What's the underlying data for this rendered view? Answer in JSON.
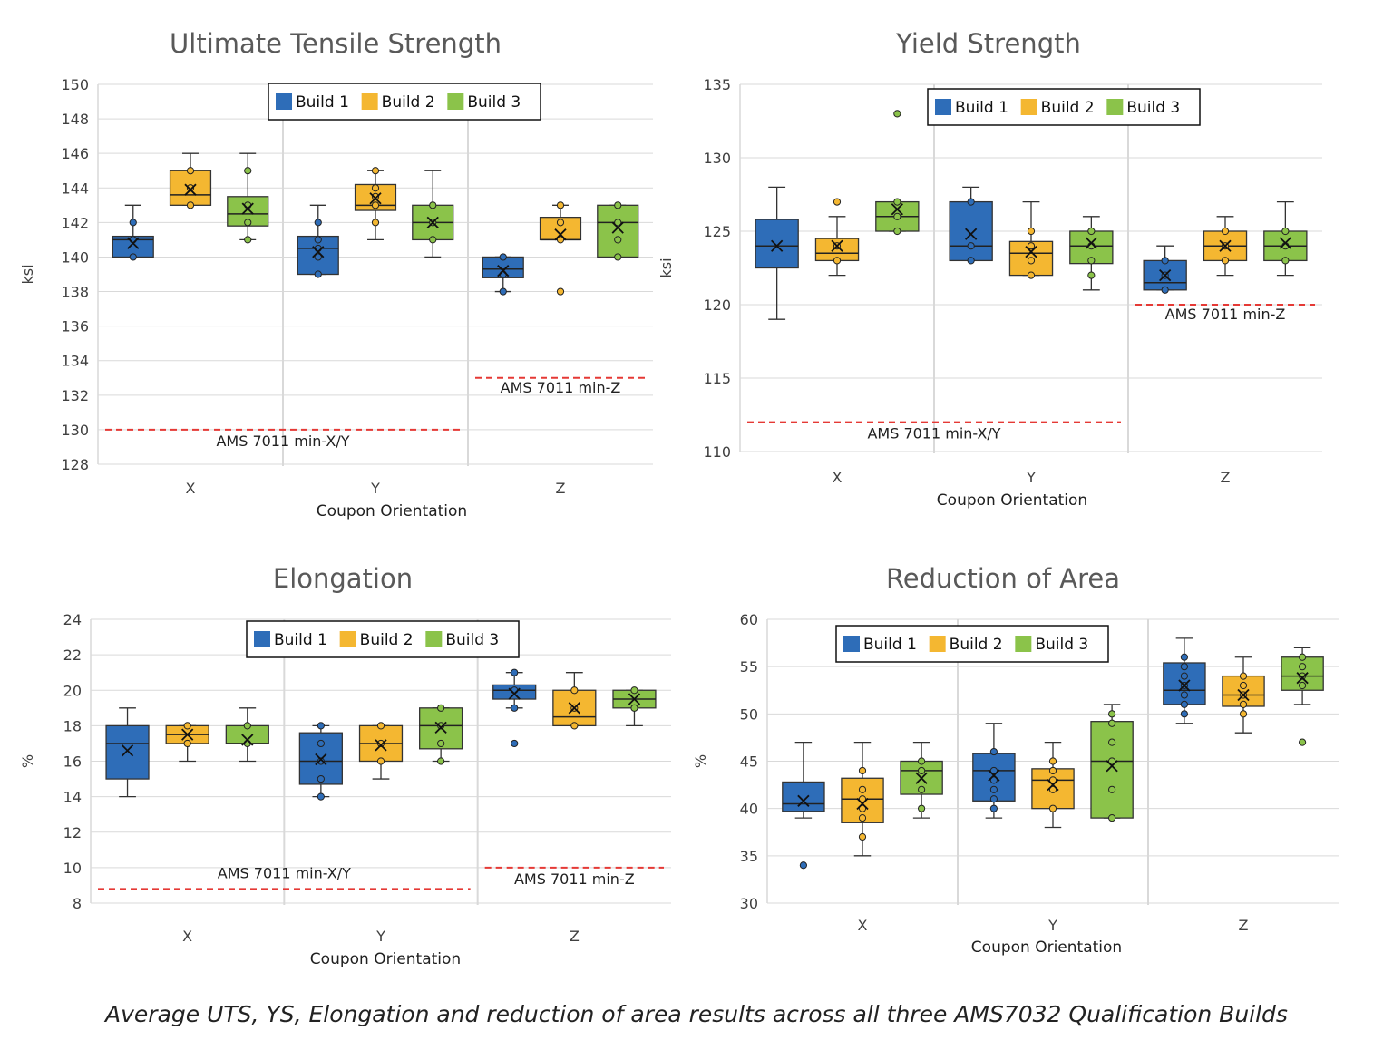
{
  "caption": "Average UTS, YS, Elongation and reduction of area results across all three AMS7032 Qualification Builds",
  "colors": {
    "build1": "#2E6DB8",
    "build2": "#F4B731",
    "build3": "#8BC34A",
    "limit": "#E53935"
  },
  "chart_data": [
    {
      "type": "box",
      "title": "Ultimate Tensile Strength",
      "ylabel": "ksi",
      "xlabel": "Coupon Orientation",
      "categories": [
        "X",
        "Y",
        "Z"
      ],
      "ylim": [
        128,
        150
      ],
      "ytick_step": 2,
      "legend": [
        "Build 1",
        "Build 2",
        "Build 3"
      ],
      "legend_position": "top-center",
      "series": [
        {
          "name": "Build 1",
          "boxes": [
            {
              "min": 140,
              "q1": 140,
              "median": 141,
              "q3": 141.2,
              "max": 143,
              "mean": 140.8,
              "points": [
                140,
                141,
                142
              ],
              "outliers": []
            },
            {
              "min": 139,
              "q1": 139,
              "median": 140.5,
              "q3": 141.2,
              "max": 143,
              "mean": 140.3,
              "points": [
                139,
                140,
                140.5,
                141,
                142
              ],
              "outliers": []
            },
            {
              "min": 138,
              "q1": 138.8,
              "median": 139.3,
              "q3": 140,
              "max": 140,
              "mean": 139.2,
              "points": [
                138,
                139,
                140
              ],
              "outliers": []
            }
          ]
        },
        {
          "name": "Build 2",
          "boxes": [
            {
              "min": 143,
              "q1": 143,
              "median": 143.6,
              "q3": 145,
              "max": 146,
              "mean": 143.9,
              "points": [
                143,
                144,
                145
              ],
              "outliers": []
            },
            {
              "min": 141,
              "q1": 142.7,
              "median": 143,
              "q3": 144.2,
              "max": 145,
              "mean": 143.4,
              "points": [
                142,
                143,
                143.5,
                144,
                145
              ],
              "outliers": []
            },
            {
              "min": 141,
              "q1": 141,
              "median": 141,
              "q3": 142.3,
              "max": 143,
              "mean": 141.3,
              "points": [
                141,
                142,
                143
              ],
              "outliers": [
                138
              ]
            }
          ]
        },
        {
          "name": "Build 3",
          "boxes": [
            {
              "min": 141,
              "q1": 141.8,
              "median": 142.5,
              "q3": 143.5,
              "max": 146,
              "mean": 142.8,
              "points": [
                141,
                142,
                143,
                145
              ],
              "outliers": []
            },
            {
              "min": 140,
              "q1": 141,
              "median": 142,
              "q3": 143,
              "max": 145,
              "mean": 142,
              "points": [
                141,
                142,
                143
              ],
              "outliers": []
            },
            {
              "min": 140,
              "q1": 140,
              "median": 142,
              "q3": 143,
              "max": 143,
              "mean": 141.7,
              "points": [
                140,
                141,
                142,
                143
              ],
              "outliers": []
            }
          ]
        }
      ],
      "limits": [
        {
          "label": "AMS 7011 min-X/Y",
          "value": 130,
          "from": "X",
          "to": "Y"
        },
        {
          "label": "AMS 7011 min-Z",
          "value": 133,
          "from": "Z",
          "to": "Z"
        }
      ]
    },
    {
      "type": "box",
      "title": "Yield Strength",
      "ylabel": "ksi",
      "xlabel": "Coupon Orientation",
      "categories": [
        "X",
        "Y",
        "Z"
      ],
      "ylim": [
        110,
        135
      ],
      "ytick_step": 5,
      "legend": [
        "Build 1",
        "Build 2",
        "Build 3"
      ],
      "legend_position": "top-center",
      "series": [
        {
          "name": "Build 1",
          "boxes": [
            {
              "min": 119,
              "q1": 122.5,
              "median": 124,
              "q3": 125.8,
              "max": 128,
              "mean": 124,
              "points": [],
              "outliers": []
            },
            {
              "min": 123,
              "q1": 123,
              "median": 124,
              "q3": 127,
              "max": 128,
              "mean": 124.8,
              "points": [
                123,
                124,
                127
              ],
              "outliers": []
            },
            {
              "min": 121,
              "q1": 121,
              "median": 121.5,
              "q3": 123,
              "max": 124,
              "mean": 122,
              "points": [
                121,
                122,
                123
              ],
              "outliers": []
            }
          ]
        },
        {
          "name": "Build 2",
          "boxes": [
            {
              "min": 122,
              "q1": 123,
              "median": 123.5,
              "q3": 124.5,
              "max": 126,
              "mean": 124,
              "points": [
                123,
                124,
                127
              ],
              "outliers": []
            },
            {
              "min": 122,
              "q1": 122,
              "median": 123.5,
              "q3": 124.3,
              "max": 127,
              "mean": 123.6,
              "points": [
                122,
                123,
                124,
                125
              ],
              "outliers": []
            },
            {
              "min": 122,
              "q1": 123,
              "median": 124,
              "q3": 125,
              "max": 126,
              "mean": 124,
              "points": [
                123,
                124,
                125
              ],
              "outliers": []
            }
          ]
        },
        {
          "name": "Build 3",
          "boxes": [
            {
              "min": 125,
              "q1": 125,
              "median": 126,
              "q3": 127,
              "max": 127,
              "mean": 126.5,
              "points": [
                125,
                126,
                127
              ],
              "outliers": [
                133
              ]
            },
            {
              "min": 121,
              "q1": 122.8,
              "median": 124,
              "q3": 125,
              "max": 126,
              "mean": 124.2,
              "points": [
                122,
                123,
                124,
                125
              ],
              "outliers": []
            },
            {
              "min": 122,
              "q1": 123,
              "median": 124,
              "q3": 125,
              "max": 127,
              "mean": 124.2,
              "points": [
                123,
                124,
                125
              ],
              "outliers": []
            }
          ]
        }
      ],
      "limits": [
        {
          "label": "AMS 7011 min-X/Y",
          "value": 112,
          "from": "X",
          "to": "Y"
        },
        {
          "label": "AMS 7011 min-Z",
          "value": 120,
          "from": "Z",
          "to": "Z"
        }
      ]
    },
    {
      "type": "box",
      "title": "Elongation",
      "ylabel": "%",
      "xlabel": "Coupon Orientation",
      "categories": [
        "X",
        "Y",
        "Z"
      ],
      "ylim": [
        8,
        24
      ],
      "ytick_step": 2,
      "legend": [
        "Build 1",
        "Build 2",
        "Build 3"
      ],
      "legend_position": "top-center",
      "series": [
        {
          "name": "Build 1",
          "boxes": [
            {
              "min": 14,
              "q1": 15,
              "median": 17,
              "q3": 18,
              "max": 19,
              "mean": 16.6,
              "points": [],
              "outliers": []
            },
            {
              "min": 14,
              "q1": 14.7,
              "median": 16,
              "q3": 17.6,
              "max": 18,
              "mean": 16.1,
              "points": [
                14,
                15,
                16,
                17,
                18
              ],
              "outliers": []
            },
            {
              "min": 19,
              "q1": 19.5,
              "median": 20,
              "q3": 20.3,
              "max": 21,
              "mean": 19.8,
              "points": [
                19,
                20,
                21
              ],
              "outliers": [
                17
              ]
            }
          ]
        },
        {
          "name": "Build 2",
          "boxes": [
            {
              "min": 16,
              "q1": 17,
              "median": 17.5,
              "q3": 18,
              "max": 18,
              "mean": 17.5,
              "points": [
                17,
                18
              ],
              "outliers": []
            },
            {
              "min": 15,
              "q1": 16,
              "median": 17,
              "q3": 18,
              "max": 18,
              "mean": 16.9,
              "points": [
                16,
                17,
                18
              ],
              "outliers": []
            },
            {
              "min": 18,
              "q1": 18,
              "median": 18.5,
              "q3": 20,
              "max": 21,
              "mean": 19,
              "points": [
                18,
                19,
                20
              ],
              "outliers": []
            }
          ]
        },
        {
          "name": "Build 3",
          "boxes": [
            {
              "min": 16,
              "q1": 17,
              "median": 17,
              "q3": 18,
              "max": 19,
              "mean": 17.2,
              "points": [
                17,
                18
              ],
              "outliers": []
            },
            {
              "min": 16,
              "q1": 16.7,
              "median": 18,
              "q3": 19,
              "max": 19,
              "mean": 17.9,
              "points": [
                16,
                17,
                18,
                19
              ],
              "outliers": []
            },
            {
              "min": 18,
              "q1": 19,
              "median": 19.5,
              "q3": 20,
              "max": 20,
              "mean": 19.5,
              "points": [
                19,
                20
              ],
              "outliers": []
            }
          ]
        }
      ],
      "limits": [
        {
          "label": "AMS 7011 min-X/Y",
          "value": 8.8,
          "from": "X",
          "to": "Y"
        },
        {
          "label": "AMS 7011 min-Z",
          "value": 10,
          "from": "Z",
          "to": "Z"
        }
      ]
    },
    {
      "type": "box",
      "title": "Reduction of Area",
      "ylabel": "%",
      "xlabel": "Coupon Orientation",
      "categories": [
        "X",
        "Y",
        "Z"
      ],
      "ylim": [
        30,
        60
      ],
      "ytick_step": 5,
      "legend": [
        "Build 1",
        "Build 2",
        "Build 3"
      ],
      "legend_position": "top-left",
      "series": [
        {
          "name": "Build 1",
          "boxes": [
            {
              "min": 39,
              "q1": 39.7,
              "median": 40.5,
              "q3": 42.8,
              "max": 47,
              "mean": 40.8,
              "points": [],
              "outliers": [
                34
              ]
            },
            {
              "min": 39,
              "q1": 40.8,
              "median": 44,
              "q3": 45.8,
              "max": 49,
              "mean": 43.5,
              "points": [
                40,
                41,
                42,
                43,
                44,
                46
              ],
              "outliers": []
            },
            {
              "min": 49,
              "q1": 51,
              "median": 52.5,
              "q3": 55.4,
              "max": 58,
              "mean": 53,
              "points": [
                50,
                51,
                52,
                53,
                54,
                55,
                56
              ],
              "outliers": []
            }
          ]
        },
        {
          "name": "Build 2",
          "boxes": [
            {
              "min": 35,
              "q1": 38.5,
              "median": 41,
              "q3": 43.2,
              "max": 47,
              "mean": 40.5,
              "points": [
                37,
                39,
                40,
                41,
                42,
                44
              ],
              "outliers": []
            },
            {
              "min": 38,
              "q1": 40,
              "median": 43,
              "q3": 44.2,
              "max": 47,
              "mean": 42.5,
              "points": [
                40,
                42,
                43,
                44,
                45
              ],
              "outliers": []
            },
            {
              "min": 48,
              "q1": 50.8,
              "median": 52,
              "q3": 54,
              "max": 56,
              "mean": 52,
              "points": [
                50,
                51,
                52,
                53,
                54
              ],
              "outliers": []
            }
          ]
        },
        {
          "name": "Build 3",
          "boxes": [
            {
              "min": 39,
              "q1": 41.5,
              "median": 44,
              "q3": 45,
              "max": 47,
              "mean": 43.2,
              "points": [
                40,
                42,
                44,
                45
              ],
              "outliers": []
            },
            {
              "min": 39,
              "q1": 39,
              "median": 45,
              "q3": 49.2,
              "max": 51,
              "mean": 44.5,
              "points": [
                39,
                42,
                45,
                47,
                49,
                50
              ],
              "outliers": []
            },
            {
              "min": 51,
              "q1": 52.5,
              "median": 54,
              "q3": 56,
              "max": 57,
              "mean": 53.8,
              "points": [
                53,
                54,
                55,
                56
              ],
              "outliers": [
                47
              ]
            }
          ]
        }
      ],
      "limits": []
    }
  ]
}
